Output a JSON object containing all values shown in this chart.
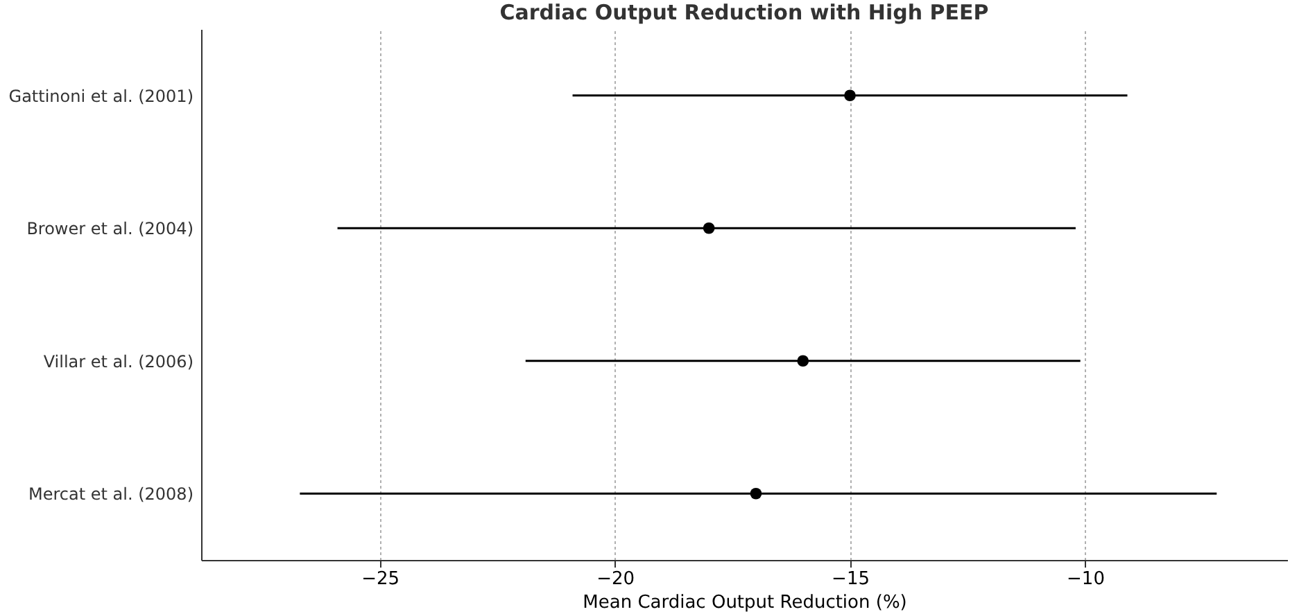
{
  "chart_data": {
    "type": "scatter",
    "title": "Cardiac Output Reduction with High PEEP",
    "xlabel": "Mean Cardiac Output Reduction (%)",
    "orientation": "horizontal",
    "categories": [
      "Gattinoni et al. (2001)",
      "Brower et al. (2004)",
      "Villar et al. (2006)",
      "Mercat et al. (2008)"
    ],
    "values": [
      -15,
      -18,
      -16,
      -17
    ],
    "errors": [
      [
        -20.9,
        -9.1
      ],
      [
        -25.9,
        -10.2
      ],
      [
        -21.9,
        -10.1
      ],
      [
        -26.7,
        -7.2
      ]
    ],
    "color": "#000000",
    "marker": "circle",
    "xlim": [
      -28.8,
      -5.7
    ],
    "xticks": [
      -25,
      -20,
      -15,
      -10
    ],
    "grid": "x"
  }
}
